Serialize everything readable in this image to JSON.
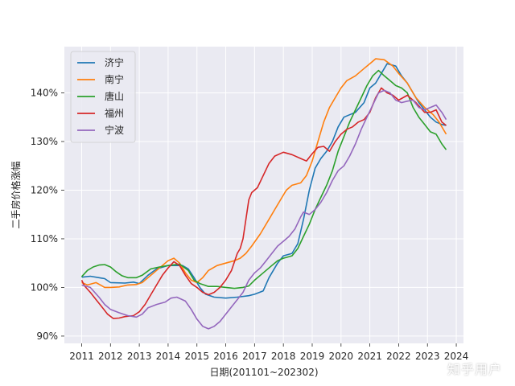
{
  "watermark": "知乎用户",
  "chart_data": {
    "type": "line",
    "title": "",
    "xlabel": "日期(201101~202302)",
    "ylabel": "二手房价格涨幅",
    "xlim": [
      2010.4,
      2024.25
    ],
    "ylim": [
      88.5,
      149.5
    ],
    "x_ticks": [
      2011,
      2012,
      2013,
      2014,
      2015,
      2016,
      2017,
      2018,
      2019,
      2020,
      2021,
      2022,
      2023,
      2024
    ],
    "x_tick_labels": [
      "2011",
      "2012",
      "2013",
      "2014",
      "2015",
      "2016",
      "2017",
      "2018",
      "2019",
      "2020",
      "2021",
      "2022",
      "2023",
      "2024"
    ],
    "y_ticks": [
      90,
      100,
      110,
      120,
      130,
      140
    ],
    "y_tick_labels": [
      "90%",
      "100%",
      "110%",
      "120%",
      "130%",
      "140%"
    ],
    "grid": true,
    "legend_position": "top-left",
    "series": [
      {
        "name": "济宁",
        "color": "#1f77b4",
        "points": [
          [
            2011.0,
            102.1
          ],
          [
            2011.3,
            102.3
          ],
          [
            2011.6,
            102.0
          ],
          [
            2011.8,
            101.8
          ],
          [
            2012.0,
            101.0
          ],
          [
            2012.5,
            100.9
          ],
          [
            2012.8,
            101.1
          ],
          [
            2013.0,
            100.8
          ],
          [
            2013.3,
            102.5
          ],
          [
            2013.6,
            103.8
          ],
          [
            2014.0,
            104.5
          ],
          [
            2014.5,
            104.5
          ],
          [
            2014.7,
            103.8
          ],
          [
            2014.9,
            102.0
          ],
          [
            2015.1,
            100.0
          ],
          [
            2015.3,
            98.6
          ],
          [
            2015.6,
            98.0
          ],
          [
            2016.0,
            97.8
          ],
          [
            2016.4,
            98.0
          ],
          [
            2016.8,
            98.3
          ],
          [
            2017.0,
            98.6
          ],
          [
            2017.3,
            99.3
          ],
          [
            2017.5,
            102.0
          ],
          [
            2017.8,
            105.0
          ],
          [
            2018.0,
            106.5
          ],
          [
            2018.3,
            107.0
          ],
          [
            2018.5,
            109.0
          ],
          [
            2018.7,
            114.0
          ],
          [
            2018.9,
            120.0
          ],
          [
            2019.1,
            124.5
          ],
          [
            2019.3,
            126.5
          ],
          [
            2019.5,
            128.0
          ],
          [
            2019.7,
            130.0
          ],
          [
            2019.9,
            133.0
          ],
          [
            2020.1,
            135.0
          ],
          [
            2020.3,
            135.5
          ],
          [
            2020.5,
            136.0
          ],
          [
            2020.8,
            138.0
          ],
          [
            2021.0,
            141.0
          ],
          [
            2021.2,
            142.0
          ],
          [
            2021.4,
            144.0
          ],
          [
            2021.6,
            146.0
          ],
          [
            2021.9,
            145.5
          ],
          [
            2022.1,
            143.5
          ],
          [
            2022.3,
            142.0
          ],
          [
            2022.5,
            140.0
          ],
          [
            2022.7,
            138.0
          ],
          [
            2022.9,
            136.5
          ],
          [
            2023.1,
            135.0
          ],
          [
            2023.3,
            134.0
          ],
          [
            2023.5,
            133.5
          ],
          [
            2023.65,
            133.3
          ]
        ]
      },
      {
        "name": "南宁",
        "color": "#ff7f0e",
        "points": [
          [
            2011.0,
            101.0
          ],
          [
            2011.2,
            100.5
          ],
          [
            2011.5,
            101.0
          ],
          [
            2011.8,
            100.0
          ],
          [
            2012.0,
            100.0
          ],
          [
            2012.3,
            100.1
          ],
          [
            2012.6,
            100.5
          ],
          [
            2012.9,
            100.6
          ],
          [
            2013.1,
            101.0
          ],
          [
            2013.5,
            103.0
          ],
          [
            2013.8,
            104.5
          ],
          [
            2014.0,
            105.5
          ],
          [
            2014.2,
            106.0
          ],
          [
            2014.4,
            105.0
          ],
          [
            2014.6,
            103.0
          ],
          [
            2014.8,
            101.5
          ],
          [
            2015.0,
            101.0
          ],
          [
            2015.2,
            102.0
          ],
          [
            2015.4,
            103.5
          ],
          [
            2015.7,
            104.5
          ],
          [
            2016.0,
            105.0
          ],
          [
            2016.3,
            105.5
          ],
          [
            2016.5,
            106.0
          ],
          [
            2016.7,
            107.0
          ],
          [
            2016.9,
            108.5
          ],
          [
            2017.2,
            111.0
          ],
          [
            2017.5,
            114.0
          ],
          [
            2017.7,
            116.0
          ],
          [
            2017.9,
            118.0
          ],
          [
            2018.1,
            120.0
          ],
          [
            2018.3,
            121.0
          ],
          [
            2018.6,
            121.5
          ],
          [
            2018.8,
            123.0
          ],
          [
            2019.0,
            126.0
          ],
          [
            2019.2,
            130.0
          ],
          [
            2019.4,
            134.0
          ],
          [
            2019.6,
            137.0
          ],
          [
            2019.8,
            139.0
          ],
          [
            2020.0,
            141.0
          ],
          [
            2020.2,
            142.5
          ],
          [
            2020.5,
            143.5
          ],
          [
            2020.8,
            145.0
          ],
          [
            2021.0,
            146.0
          ],
          [
            2021.2,
            147.0
          ],
          [
            2021.5,
            146.8
          ],
          [
            2021.8,
            145.5
          ],
          [
            2022.0,
            144.0
          ],
          [
            2022.3,
            142.0
          ],
          [
            2022.6,
            139.0
          ],
          [
            2022.9,
            137.0
          ],
          [
            2023.2,
            135.5
          ],
          [
            2023.4,
            134.0
          ],
          [
            2023.65,
            131.5
          ]
        ]
      },
      {
        "name": "唐山",
        "color": "#2ca02c",
        "points": [
          [
            2011.0,
            102.2
          ],
          [
            2011.2,
            103.5
          ],
          [
            2011.4,
            104.2
          ],
          [
            2011.6,
            104.6
          ],
          [
            2011.8,
            104.7
          ],
          [
            2012.0,
            104.2
          ],
          [
            2012.2,
            103.2
          ],
          [
            2012.4,
            102.4
          ],
          [
            2012.6,
            102.0
          ],
          [
            2012.9,
            102.0
          ],
          [
            2013.1,
            102.5
          ],
          [
            2013.4,
            103.8
          ],
          [
            2013.7,
            104.2
          ],
          [
            2014.0,
            104.5
          ],
          [
            2014.4,
            104.8
          ],
          [
            2014.7,
            103.5
          ],
          [
            2014.9,
            101.5
          ],
          [
            2015.1,
            100.8
          ],
          [
            2015.4,
            100.2
          ],
          [
            2015.7,
            100.2
          ],
          [
            2016.0,
            100.0
          ],
          [
            2016.3,
            99.8
          ],
          [
            2016.6,
            100.0
          ],
          [
            2016.8,
            100.3
          ],
          [
            2017.0,
            101.5
          ],
          [
            2017.3,
            103.0
          ],
          [
            2017.6,
            104.5
          ],
          [
            2017.8,
            105.5
          ],
          [
            2018.0,
            106.0
          ],
          [
            2018.3,
            106.5
          ],
          [
            2018.5,
            108.0
          ],
          [
            2018.7,
            110.5
          ],
          [
            2018.9,
            113.0
          ],
          [
            2019.1,
            116.0
          ],
          [
            2019.3,
            118.5
          ],
          [
            2019.5,
            121.0
          ],
          [
            2019.7,
            124.0
          ],
          [
            2019.9,
            128.0
          ],
          [
            2020.1,
            131.0
          ],
          [
            2020.3,
            134.0
          ],
          [
            2020.5,
            136.5
          ],
          [
            2020.7,
            139.0
          ],
          [
            2020.9,
            141.5
          ],
          [
            2021.1,
            143.5
          ],
          [
            2021.3,
            144.6
          ],
          [
            2021.5,
            143.5
          ],
          [
            2021.7,
            142.5
          ],
          [
            2021.9,
            141.5
          ],
          [
            2022.1,
            141.0
          ],
          [
            2022.3,
            140.0
          ],
          [
            2022.5,
            137.0
          ],
          [
            2022.7,
            135.0
          ],
          [
            2022.9,
            133.5
          ],
          [
            2023.1,
            132.0
          ],
          [
            2023.3,
            131.5
          ],
          [
            2023.5,
            129.5
          ],
          [
            2023.65,
            128.3
          ]
        ]
      },
      {
        "name": "福州",
        "color": "#d62728",
        "points": [
          [
            2011.0,
            101.5
          ],
          [
            2011.1,
            100.3
          ],
          [
            2011.3,
            99.0
          ],
          [
            2011.5,
            97.5
          ],
          [
            2011.7,
            96.0
          ],
          [
            2011.9,
            94.5
          ],
          [
            2012.1,
            93.6
          ],
          [
            2012.3,
            93.7
          ],
          [
            2012.5,
            94.0
          ],
          [
            2012.8,
            94.2
          ],
          [
            2013.0,
            95.0
          ],
          [
            2013.2,
            96.5
          ],
          [
            2013.4,
            98.5
          ],
          [
            2013.6,
            100.5
          ],
          [
            2013.8,
            102.5
          ],
          [
            2014.0,
            104.0
          ],
          [
            2014.2,
            105.3
          ],
          [
            2014.4,
            104.5
          ],
          [
            2014.6,
            102.5
          ],
          [
            2014.8,
            100.8
          ],
          [
            2015.0,
            100.0
          ],
          [
            2015.2,
            99.0
          ],
          [
            2015.4,
            98.5
          ],
          [
            2015.6,
            99.0
          ],
          [
            2015.8,
            100.0
          ],
          [
            2016.0,
            101.5
          ],
          [
            2016.2,
            103.5
          ],
          [
            2016.4,
            107.0
          ],
          [
            2016.5,
            108.0
          ],
          [
            2016.6,
            110.0
          ],
          [
            2016.7,
            114.0
          ],
          [
            2016.8,
            118.0
          ],
          [
            2016.9,
            119.5
          ],
          [
            2017.1,
            120.5
          ],
          [
            2017.3,
            123.0
          ],
          [
            2017.5,
            125.5
          ],
          [
            2017.7,
            127.0
          ],
          [
            2018.0,
            127.8
          ],
          [
            2018.3,
            127.3
          ],
          [
            2018.6,
            126.5
          ],
          [
            2018.8,
            126.0
          ],
          [
            2019.0,
            127.5
          ],
          [
            2019.2,
            128.8
          ],
          [
            2019.4,
            129.0
          ],
          [
            2019.6,
            128.0
          ],
          [
            2019.8,
            130.0
          ],
          [
            2020.0,
            131.5
          ],
          [
            2020.2,
            132.5
          ],
          [
            2020.4,
            133.0
          ],
          [
            2020.6,
            134.0
          ],
          [
            2020.8,
            134.5
          ],
          [
            2021.0,
            136.0
          ],
          [
            2021.2,
            139.0
          ],
          [
            2021.4,
            141.0
          ],
          [
            2021.6,
            140.0
          ],
          [
            2021.8,
            139.5
          ],
          [
            2022.0,
            138.5
          ],
          [
            2022.3,
            139.5
          ],
          [
            2022.6,
            138.0
          ],
          [
            2022.9,
            136.0
          ],
          [
            2023.1,
            136.0
          ],
          [
            2023.3,
            136.5
          ],
          [
            2023.5,
            134.0
          ],
          [
            2023.65,
            133.3
          ]
        ]
      },
      {
        "name": "宁波",
        "color": "#9467bd",
        "points": [
          [
            2011.0,
            100.5
          ],
          [
            2011.3,
            100.0
          ],
          [
            2011.6,
            98.0
          ],
          [
            2011.8,
            96.5
          ],
          [
            2012.0,
            95.5
          ],
          [
            2012.3,
            94.8
          ],
          [
            2012.6,
            94.2
          ],
          [
            2012.9,
            93.9
          ],
          [
            2013.1,
            94.5
          ],
          [
            2013.3,
            95.8
          ],
          [
            2013.6,
            96.5
          ],
          [
            2013.9,
            97.0
          ],
          [
            2014.1,
            97.8
          ],
          [
            2014.3,
            98.0
          ],
          [
            2014.6,
            97.2
          ],
          [
            2014.8,
            95.5
          ],
          [
            2015.0,
            93.5
          ],
          [
            2015.2,
            92.0
          ],
          [
            2015.4,
            91.5
          ],
          [
            2015.6,
            92.0
          ],
          [
            2015.8,
            93.0
          ],
          [
            2016.0,
            94.5
          ],
          [
            2016.2,
            96.0
          ],
          [
            2016.4,
            97.5
          ],
          [
            2016.6,
            99.0
          ],
          [
            2016.8,
            101.5
          ],
          [
            2017.0,
            103.0
          ],
          [
            2017.2,
            104.0
          ],
          [
            2017.4,
            105.5
          ],
          [
            2017.6,
            107.0
          ],
          [
            2017.8,
            108.5
          ],
          [
            2018.0,
            109.5
          ],
          [
            2018.2,
            110.5
          ],
          [
            2018.4,
            112.0
          ],
          [
            2018.6,
            114.5
          ],
          [
            2018.7,
            115.5
          ],
          [
            2018.9,
            115.0
          ],
          [
            2019.1,
            116.0
          ],
          [
            2019.3,
            117.5
          ],
          [
            2019.5,
            119.5
          ],
          [
            2019.7,
            122.0
          ],
          [
            2019.9,
            124.0
          ],
          [
            2020.1,
            125.0
          ],
          [
            2020.3,
            127.0
          ],
          [
            2020.5,
            129.5
          ],
          [
            2020.7,
            132.5
          ],
          [
            2020.9,
            135.0
          ],
          [
            2021.1,
            137.5
          ],
          [
            2021.3,
            140.0
          ],
          [
            2021.5,
            140.5
          ],
          [
            2021.7,
            140.0
          ],
          [
            2021.9,
            138.5
          ],
          [
            2022.1,
            138.0
          ],
          [
            2022.3,
            138.3
          ],
          [
            2022.5,
            138.5
          ],
          [
            2022.7,
            137.0
          ],
          [
            2022.9,
            136.5
          ],
          [
            2023.1,
            137.0
          ],
          [
            2023.3,
            137.5
          ],
          [
            2023.5,
            136.0
          ],
          [
            2023.65,
            134.5
          ]
        ]
      }
    ]
  }
}
